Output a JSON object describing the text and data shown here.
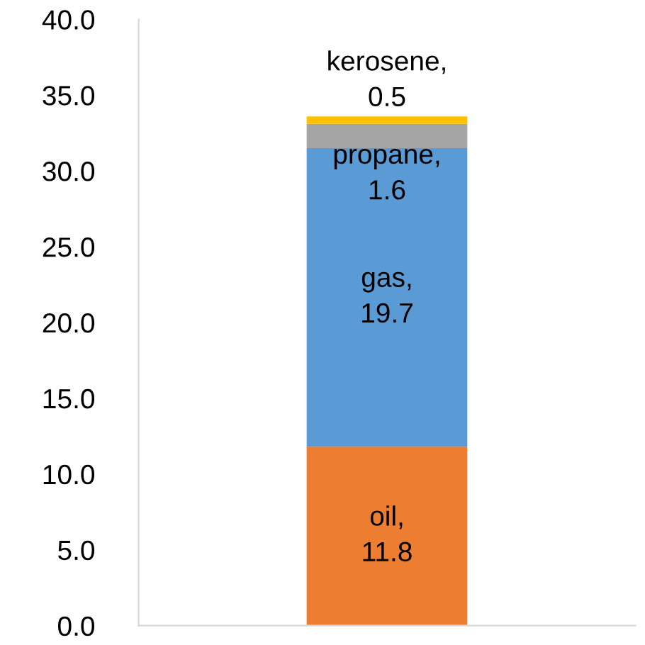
{
  "chart_data": {
    "type": "bar",
    "stacked": true,
    "categories": [
      null
    ],
    "series": [
      {
        "name": "oil,",
        "color": "#ed7d31",
        "values": [
          11.8
        ]
      },
      {
        "name": "gas,",
        "color": "#5b9bd5",
        "values": [
          19.7
        ]
      },
      {
        "name": "propane,",
        "color": "#a5a5a5",
        "values": [
          1.6
        ]
      },
      {
        "name": "kerosene,",
        "color": "#ffc000",
        "values": [
          0.5
        ]
      }
    ],
    "data_labels": true,
    "ylim": [
      0,
      40
    ],
    "yticks": [
      {
        "value": 0,
        "label": "0.0"
      },
      {
        "value": 5,
        "label": "5.0"
      },
      {
        "value": 10,
        "label": "10.0"
      },
      {
        "value": 15,
        "label": "15.0"
      },
      {
        "value": 20,
        "label": "20.0"
      },
      {
        "value": 25,
        "label": "25.0"
      },
      {
        "value": 30,
        "label": "30.0"
      },
      {
        "value": 35,
        "label": "35.0"
      },
      {
        "value": 40,
        "label": "40.0"
      }
    ],
    "grid": false
  }
}
